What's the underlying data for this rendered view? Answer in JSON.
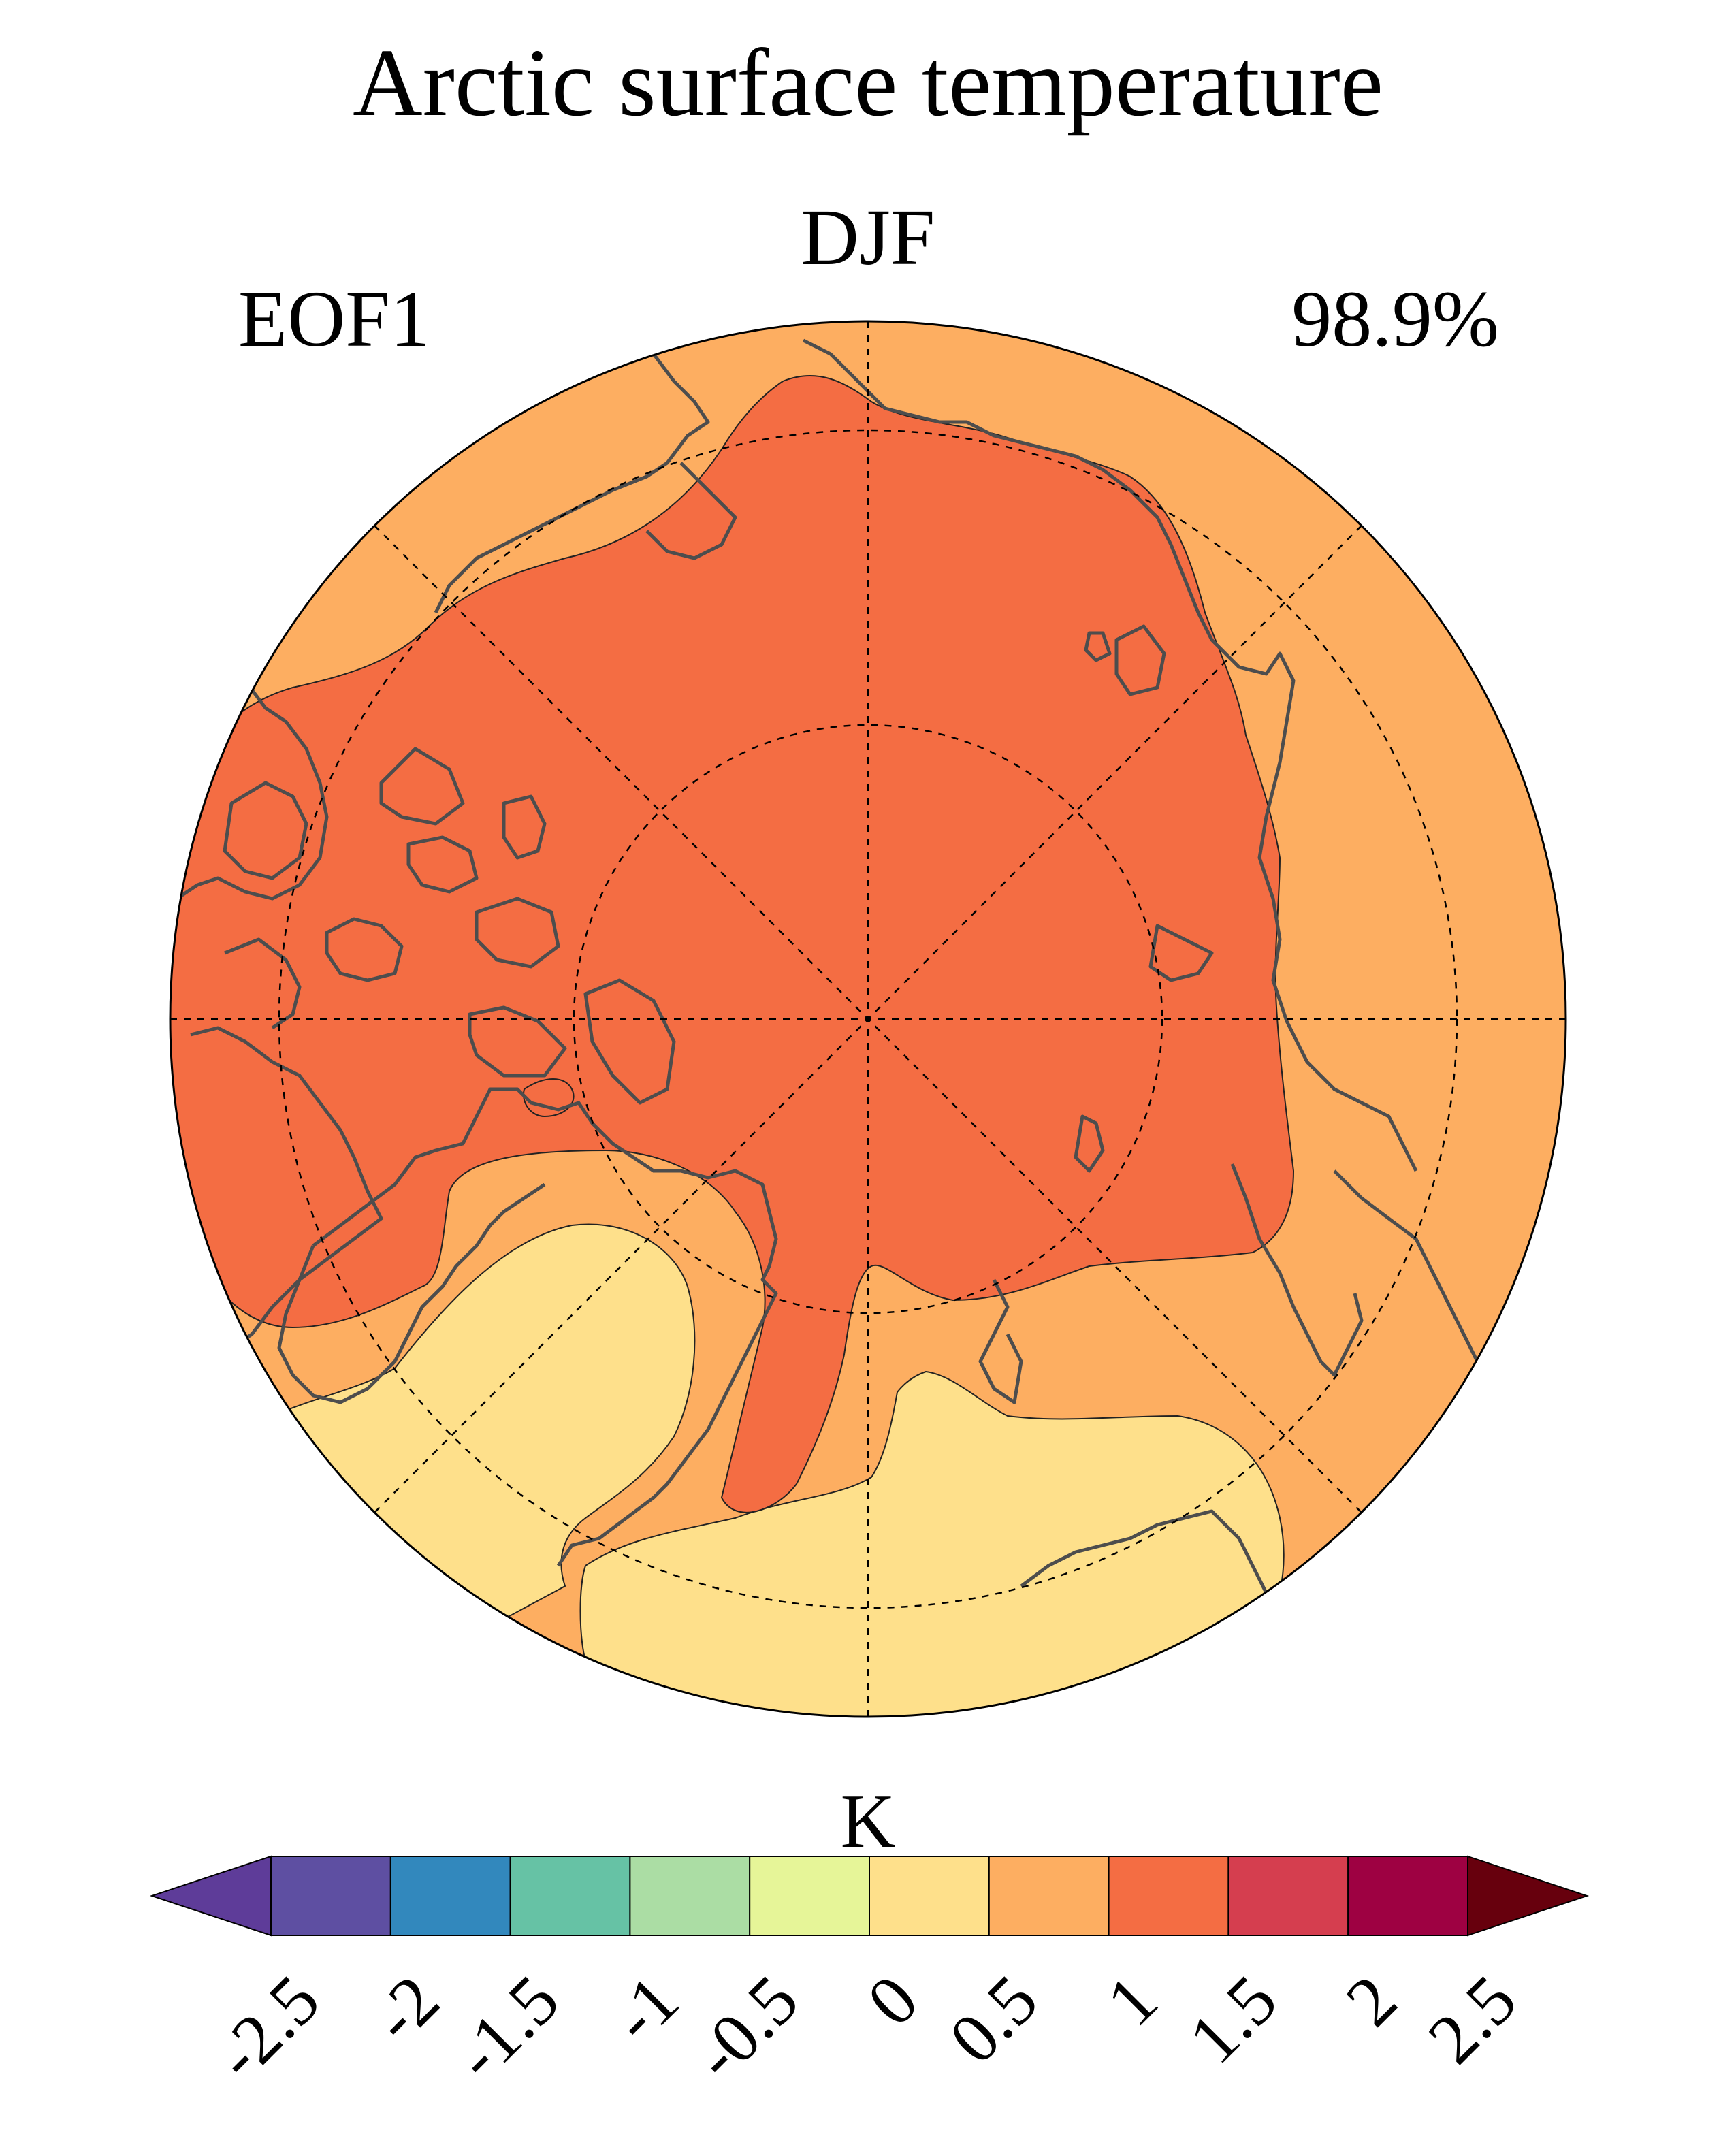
{
  "title": "Arctic surface temperature",
  "season": "DJF",
  "mode_label": "EOF1",
  "variance_label": "98.9%",
  "colorbar": {
    "unit": "K",
    "ticks": [
      "-2.5",
      "-2",
      "-1.5",
      "-1",
      "-0.5",
      "0",
      "0.5",
      "1",
      "1.5",
      "2",
      "2.5"
    ],
    "levels": [
      -2.5,
      -2,
      -1.5,
      -1,
      -0.5,
      0,
      0.5,
      1,
      1.5,
      2,
      2.5
    ],
    "colors": [
      "#5e4fa2",
      "#3288bd",
      "#66c2a5",
      "#abdda4",
      "#e6f598",
      "#fee08b",
      "#fdae61",
      "#f46d43",
      "#d53e4f",
      "#9e0142"
    ],
    "under_color": "#5e3c99",
    "over_color": "#67000d",
    "extend": "both"
  },
  "map": {
    "projection": "north polar stereographic",
    "field_colors": {
      "band_0_to_0.5": "#fee08b",
      "band_0.5_to_1": "#fdae61",
      "band_1_to_1.5": "#f46d43"
    },
    "coastline_color": "#4d4d4d",
    "gridlines": "dashed"
  }
}
